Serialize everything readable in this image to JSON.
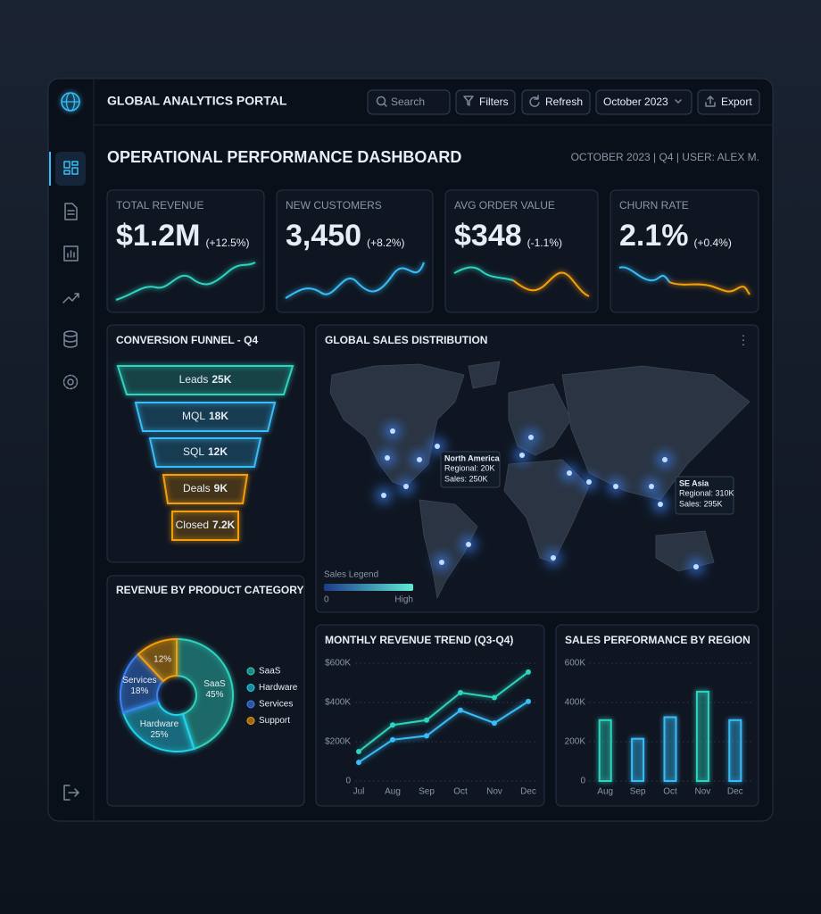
{
  "header": {
    "title": "GLOBAL ANALYTICS PORTAL",
    "search_placeholder": "Search",
    "filters": "Filters",
    "refresh": "Refresh",
    "period": "October 2023",
    "export": "Export"
  },
  "dashboard": {
    "title": "OPERATIONAL PERFORMANCE DASHBOARD",
    "meta": "OCTOBER 2023 | Q4 | USER: ALEX M."
  },
  "kpis": [
    {
      "label": "TOTAL REVENUE",
      "value": "$1.2M",
      "change": "(+12.5%)",
      "change_color": "#4ade80"
    },
    {
      "label": "NEW CUSTOMERS",
      "value": "3,450",
      "change": "(+8.2%)",
      "change_color": "#4ade80"
    },
    {
      "label": "AVG ORDER VALUE",
      "value": "$348",
      "change": "(-1.1%)",
      "change_color": "#f87171"
    },
    {
      "label": "CHURN RATE",
      "value": "2.1%",
      "change": "(+0.4%)",
      "change_color": "#f87171"
    }
  ],
  "funnel": {
    "title": "CONVERSION FUNNEL - Q4",
    "stages": [
      {
        "label": "Leads",
        "value": "25K",
        "color": "#2dd4bf"
      },
      {
        "label": "MQL",
        "value": "18K",
        "color": "#38bdf8"
      },
      {
        "label": "SQL",
        "value": "12K",
        "color": "#38bdf8"
      },
      {
        "label": "Deals",
        "value": "9K",
        "color": "#f59e0b"
      },
      {
        "label": "Closed",
        "value": "7.2K",
        "color": "#f59e0b"
      }
    ]
  },
  "map": {
    "title": "GLOBAL SALES DISTRIBUTION",
    "callouts": [
      {
        "region": "North America",
        "lines": [
          "Regional: 20K",
          "Sales: 250K"
        ]
      },
      {
        "region": "SE Asia",
        "lines": [
          "Regional: 310K",
          "Sales: 295K"
        ]
      }
    ],
    "legend": {
      "title": "Sales Legend",
      "min": "0",
      "max": "High"
    }
  },
  "product_category": {
    "type": "pie",
    "title": "REVENUE BY PRODUCT CATEGORY",
    "categories": [
      "SaaS",
      "Hardware",
      "Services",
      "Support"
    ],
    "values": [
      45,
      25,
      18,
      12
    ],
    "value_labels": [
      "45%",
      "25%",
      "18%",
      "12%"
    ],
    "colors": [
      "#2dd4bf",
      "#22d3ee",
      "#3b82f6",
      "#f59e0b"
    ]
  },
  "monthly_trend": {
    "type": "line",
    "title": "MONTHLY REVENUE TREND (Q3-Q4)",
    "categories": [
      "Jul",
      "Aug",
      "Sep",
      "Oct",
      "Nov",
      "Dec"
    ],
    "series": [
      {
        "color": "#2dd4bf",
        "values": [
          150000,
          285000,
          310000,
          450000,
          425000,
          555000
        ]
      },
      {
        "color": "#38bdf8",
        "values": [
          95000,
          210000,
          230000,
          360000,
          295000,
          405000
        ]
      }
    ],
    "ylim": [
      0,
      600000
    ],
    "yticks": [
      0,
      {
        "value": 200000,
        "label": "$200K"
      },
      {
        "value": 400000,
        "label": "$400K"
      },
      {
        "value": 600000,
        "label": "$600K"
      }
    ],
    "grid": true
  },
  "region_sales": {
    "type": "bar",
    "title": "SALES PERFORMANCE BY REGION",
    "categories": [
      "Aug",
      "Sep",
      "Oct",
      "Nov",
      "Dec"
    ],
    "values": [
      310000,
      215000,
      325000,
      455000,
      310000
    ],
    "colors": [
      "#2dd4bf",
      "#38bdf8",
      "#38bdf8",
      "#2dd4bf",
      "#38bdf8"
    ],
    "ylim": [
      0,
      600000
    ],
    "yticks": [
      0,
      {
        "value": 200000,
        "label": "200K"
      },
      {
        "value": 400000,
        "label": "400K"
      },
      {
        "value": 600000,
        "label": "600K"
      }
    ],
    "grid": true
  }
}
